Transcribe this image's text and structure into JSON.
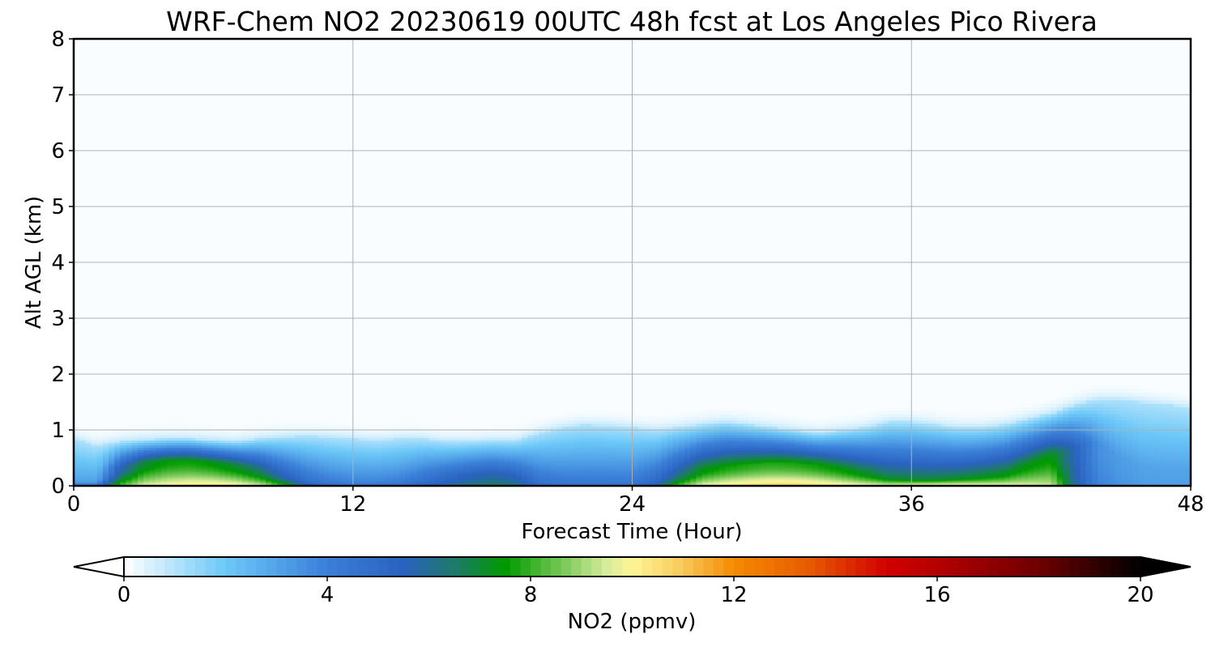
{
  "chart_data": {
    "type": "heatmap",
    "title": "WRF-Chem NO2  20230619 00UTC 48h fcst at Los Angeles Pico Rivera",
    "xlabel": "Forecast Time (Hour)",
    "ylabel": "Alt AGL (km)",
    "xlim": [
      0,
      48
    ],
    "ylim": [
      0,
      8
    ],
    "x_ticks": [
      0,
      12,
      24,
      36,
      48
    ],
    "y_ticks": [
      0,
      1,
      2,
      3,
      4,
      5,
      6,
      7,
      8
    ],
    "grid": true,
    "colorbar": {
      "label": "NO2  (ppmv)",
      "min": 0,
      "max": 20,
      "ticks": [
        0,
        4,
        8,
        12,
        16,
        20
      ],
      "extend": "both",
      "colors": [
        {
          "value": 0,
          "color": "#ffffff"
        },
        {
          "value": 2,
          "color": "#6cc8f8"
        },
        {
          "value": 4,
          "color": "#3a7fd8"
        },
        {
          "value": 5.5,
          "color": "#2a62c0"
        },
        {
          "value": 6.5,
          "color": "#1e7a6a"
        },
        {
          "value": 7.5,
          "color": "#009a00"
        },
        {
          "value": 9.5,
          "color": "#d6ec9c"
        },
        {
          "value": 10,
          "color": "#fff596"
        },
        {
          "value": 11,
          "color": "#f8c85a"
        },
        {
          "value": 12,
          "color": "#f58a00"
        },
        {
          "value": 13.5,
          "color": "#e85a00"
        },
        {
          "value": 15,
          "color": "#d20000"
        },
        {
          "value": 16,
          "color": "#b40000"
        },
        {
          "value": 18,
          "color": "#6e0000"
        },
        {
          "value": 20,
          "color": "#000000"
        }
      ]
    },
    "hours": [
      0,
      1,
      2,
      3,
      4,
      5,
      6,
      7,
      8,
      9,
      10,
      11,
      12,
      13,
      14,
      15,
      16,
      17,
      18,
      19,
      20,
      21,
      22,
      23,
      24,
      25,
      26,
      27,
      28,
      29,
      30,
      31,
      32,
      33,
      34,
      35,
      36,
      37,
      38,
      39,
      40,
      41,
      42,
      43,
      44,
      45,
      46,
      47,
      48
    ],
    "altitudes_km": [
      0,
      0.05,
      0.1,
      0.15,
      0.2,
      0.25,
      0.3,
      0.35,
      0.4,
      0.45,
      0.5,
      0.6,
      0.7,
      0.8,
      0.9,
      1.0,
      1.1,
      1.2,
      1.3,
      1.4,
      1.5,
      1.6,
      1.8,
      2.0,
      2.5,
      3,
      4,
      5,
      6,
      7,
      8
    ],
    "boundary_layer_top_km": [
      0.85,
      0.72,
      0.8,
      0.83,
      0.85,
      0.85,
      0.82,
      0.8,
      0.85,
      0.88,
      0.9,
      0.88,
      0.85,
      0.82,
      0.85,
      0.85,
      0.8,
      0.8,
      0.82,
      0.82,
      0.95,
      1.05,
      1.1,
      1.08,
      1.05,
      1.0,
      1.05,
      1.1,
      1.15,
      1.1,
      1.05,
      1.0,
      0.95,
      1.0,
      1.05,
      1.15,
      1.15,
      1.1,
      1.05,
      1.05,
      1.1,
      1.2,
      1.3,
      1.45,
      1.55,
      1.55,
      1.5,
      1.45,
      1.4
    ],
    "column_no2": [
      3,
      3,
      5.5,
      7,
      7.5,
      7.6,
      7.4,
      7,
      6.5,
      5.5,
      4.5,
      4,
      3.8,
      3.8,
      4,
      4.5,
      5,
      5.5,
      5.8,
      5.5,
      4.5,
      4.2,
      4.2,
      4.2,
      4.2,
      4.8,
      6,
      7.2,
      7.6,
      7.8,
      7.9,
      7.8,
      7.6,
      7.4,
      7.1,
      6.8,
      6.8,
      6.8,
      6.8,
      7,
      7.1,
      7.3,
      7.4,
      5.5,
      3.5,
      3.2,
      3,
      3,
      3
    ],
    "surface_no2": [
      5,
      5,
      8.5,
      9.8,
      10.2,
      10.5,
      10.6,
      10.4,
      9.8,
      8.5,
      6,
      5,
      4.8,
      4.8,
      5,
      5.5,
      6,
      6.5,
      6.8,
      6.5,
      5.2,
      4.8,
      4.8,
      4.8,
      5,
      6,
      8.5,
      10,
      10.5,
      10.8,
      11,
      11,
      10.8,
      10.5,
      10.3,
      10.2,
      10.8,
      11,
      10.8,
      10.5,
      10.2,
      9.8,
      9.5,
      6,
      4,
      3.5,
      3.2,
      3.2,
      3.2
    ],
    "mixed_layer_depth_km": [
      0.1,
      0.1,
      0.35,
      0.42,
      0.45,
      0.45,
      0.42,
      0.38,
      0.3,
      0.2,
      0.15,
      0.12,
      0.1,
      0.1,
      0.1,
      0.15,
      0.18,
      0.2,
      0.2,
      0.18,
      0.12,
      0.1,
      0.1,
      0.1,
      0.1,
      0.15,
      0.25,
      0.32,
      0.35,
      0.38,
      0.4,
      0.4,
      0.38,
      0.32,
      0.25,
      0.18,
      0.15,
      0.15,
      0.18,
      0.2,
      0.25,
      0.4,
      0.55,
      0.7,
      0.8,
      0.5,
      0.35,
      0.3,
      0.3
    ]
  }
}
